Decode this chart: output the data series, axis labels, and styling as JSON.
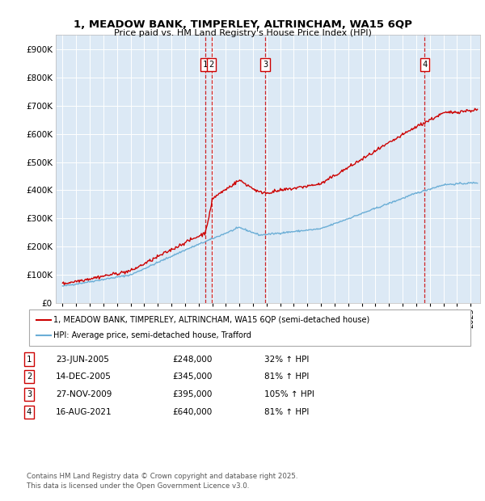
{
  "title_line1": "1, MEADOW BANK, TIMPERLEY, ALTRINCHAM, WA15 6QP",
  "title_line2": "Price paid vs. HM Land Registry's House Price Index (HPI)",
  "background_color": "#dce9f5",
  "transactions": [
    {
      "num": 1,
      "date_x": 2005.47,
      "price": 248000,
      "label": "23-JUN-2005",
      "pct": "32%"
    },
    {
      "num": 2,
      "date_x": 2005.95,
      "price": 345000,
      "label": "14-DEC-2005",
      "pct": "81%"
    },
    {
      "num": 3,
      "date_x": 2009.9,
      "price": 395000,
      "label": "27-NOV-2009",
      "pct": "105%"
    },
    {
      "num": 4,
      "date_x": 2021.62,
      "price": 640000,
      "label": "16-AUG-2021",
      "pct": "81%"
    }
  ],
  "hpi_color": "#6baed6",
  "price_color": "#cc0000",
  "vline_color": "#cc0000",
  "yticks": [
    0,
    100000,
    200000,
    300000,
    400000,
    500000,
    600000,
    700000,
    800000,
    900000
  ],
  "ytick_labels": [
    "£0",
    "£100K",
    "£200K",
    "£300K",
    "£400K",
    "£500K",
    "£600K",
    "£700K",
    "£800K",
    "£900K"
  ],
  "xlim": [
    1994.5,
    2025.7
  ],
  "ylim": [
    0,
    950000
  ],
  "legend_label_red": "1, MEADOW BANK, TIMPERLEY, ALTRINCHAM, WA15 6QP (semi-detached house)",
  "legend_label_blue": "HPI: Average price, semi-detached house, Trafford",
  "table_rows": [
    [
      "1",
      "23-JUN-2005",
      "£248,000",
      "32% ↑ HPI"
    ],
    [
      "2",
      "14-DEC-2005",
      "£345,000",
      "81% ↑ HPI"
    ],
    [
      "3",
      "27-NOV-2009",
      "£395,000",
      "105% ↑ HPI"
    ],
    [
      "4",
      "16-AUG-2021",
      "£640,000",
      "81% ↑ HPI"
    ]
  ],
  "footer": "Contains HM Land Registry data © Crown copyright and database right 2025.\nThis data is licensed under the Open Government Licence v3.0."
}
